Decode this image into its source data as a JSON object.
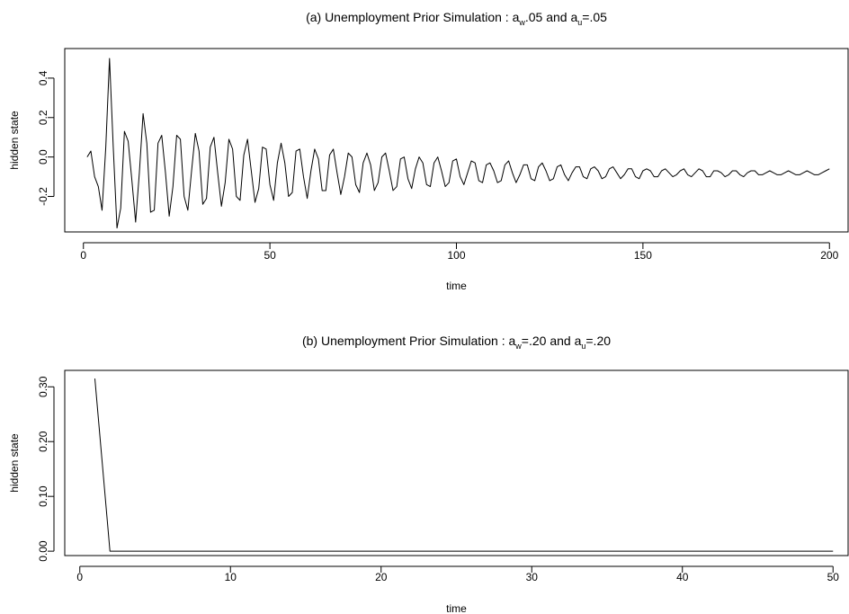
{
  "chart_data": [
    {
      "type": "line",
      "title": {
        "prefix": "(a) Unemployment Prior Simulation : a",
        "sub1": "w",
        "mid": ".05 and a",
        "sub2": "u",
        "suffix": "=.05"
      },
      "xlabel": "time",
      "ylabel": "hidden state",
      "xlim": [
        -5,
        205
      ],
      "ylim": [
        -0.38,
        0.55
      ],
      "x_ticks": [
        0,
        50,
        100,
        150,
        200
      ],
      "y_ticks": [
        -0.2,
        0.0,
        0.2,
        0.4
      ],
      "y_tick_labels": [
        "-0.2",
        "0.0",
        "0.2",
        "0.4"
      ],
      "x": [
        1,
        2,
        3,
        4,
        5,
        6,
        7,
        8,
        9,
        10,
        11,
        12,
        13,
        14,
        15,
        16,
        17,
        18,
        19,
        20,
        21,
        22,
        23,
        24,
        25,
        26,
        27,
        28,
        29,
        30,
        31,
        32,
        33,
        34,
        35,
        36,
        37,
        38,
        39,
        40,
        41,
        42,
        43,
        44,
        45,
        46,
        47,
        48,
        49,
        50,
        51,
        52,
        53,
        54,
        55,
        56,
        57,
        58,
        59,
        60,
        61,
        62,
        63,
        64,
        65,
        66,
        67,
        68,
        69,
        70,
        71,
        72,
        73,
        74,
        75,
        76,
        77,
        78,
        79,
        80,
        81,
        82,
        83,
        84,
        85,
        86,
        87,
        88,
        89,
        90,
        91,
        92,
        93,
        94,
        95,
        96,
        97,
        98,
        99,
        100,
        101,
        102,
        103,
        104,
        105,
        106,
        107,
        108,
        109,
        110,
        111,
        112,
        113,
        114,
        115,
        116,
        117,
        118,
        119,
        120,
        121,
        122,
        123,
        124,
        125,
        126,
        127,
        128,
        129,
        130,
        131,
        132,
        133,
        134,
        135,
        136,
        137,
        138,
        139,
        140,
        141,
        142,
        143,
        144,
        145,
        146,
        147,
        148,
        149,
        150,
        151,
        152,
        153,
        154,
        155,
        156,
        157,
        158,
        159,
        160,
        161,
        162,
        163,
        164,
        165,
        166,
        167,
        168,
        169,
        170,
        171,
        172,
        173,
        174,
        175,
        176,
        177,
        178,
        179,
        180,
        181,
        182,
        183,
        184,
        185,
        186,
        187,
        188,
        189,
        190,
        191,
        192,
        193,
        194,
        195,
        196,
        197,
        198,
        199,
        200
      ],
      "values": [
        0.0,
        0.03,
        -0.1,
        -0.15,
        -0.27,
        0.05,
        0.5,
        0.05,
        -0.36,
        -0.26,
        0.13,
        0.08,
        -0.12,
        -0.33,
        -0.08,
        0.22,
        0.07,
        -0.28,
        -0.27,
        0.07,
        0.11,
        -0.08,
        -0.3,
        -0.15,
        0.11,
        0.09,
        -0.2,
        -0.27,
        -0.07,
        0.12,
        0.03,
        -0.24,
        -0.21,
        0.05,
        0.1,
        -0.08,
        -0.25,
        -0.13,
        0.09,
        0.04,
        -0.2,
        -0.22,
        0.01,
        0.09,
        -0.07,
        -0.23,
        -0.16,
        0.05,
        0.04,
        -0.14,
        -0.22,
        -0.03,
        0.07,
        -0.03,
        -0.2,
        -0.18,
        0.03,
        0.04,
        -0.1,
        -0.21,
        -0.07,
        0.04,
        -0.01,
        -0.17,
        -0.17,
        0.01,
        0.04,
        -0.08,
        -0.19,
        -0.1,
        0.02,
        0.0,
        -0.14,
        -0.18,
        -0.03,
        0.02,
        -0.04,
        -0.17,
        -0.13,
        0.0,
        0.02,
        -0.07,
        -0.17,
        -0.15,
        -0.01,
        0.0,
        -0.11,
        -0.16,
        -0.06,
        0.0,
        -0.03,
        -0.14,
        -0.15,
        -0.03,
        0.0,
        -0.07,
        -0.15,
        -0.13,
        -0.02,
        -0.01,
        -0.1,
        -0.14,
        -0.08,
        -0.02,
        -0.03,
        -0.12,
        -0.13,
        -0.04,
        -0.03,
        -0.07,
        -0.13,
        -0.12,
        -0.04,
        -0.02,
        -0.08,
        -0.13,
        -0.09,
        -0.04,
        -0.04,
        -0.11,
        -0.12,
        -0.05,
        -0.03,
        -0.07,
        -0.12,
        -0.11,
        -0.05,
        -0.04,
        -0.09,
        -0.12,
        -0.08,
        -0.05,
        -0.05,
        -0.1,
        -0.11,
        -0.06,
        -0.05,
        -0.07,
        -0.11,
        -0.1,
        -0.06,
        -0.05,
        -0.08,
        -0.11,
        -0.09,
        -0.06,
        -0.06,
        -0.1,
        -0.11,
        -0.07,
        -0.06,
        -0.07,
        -0.1,
        -0.1,
        -0.07,
        -0.06,
        -0.08,
        -0.1,
        -0.09,
        -0.07,
        -0.06,
        -0.09,
        -0.1,
        -0.08,
        -0.06,
        -0.07,
        -0.1,
        -0.1,
        -0.07,
        -0.07,
        -0.08,
        -0.1,
        -0.09,
        -0.07,
        -0.07,
        -0.09,
        -0.1,
        -0.08,
        -0.07,
        -0.07,
        -0.09,
        -0.09,
        -0.08,
        -0.07,
        -0.08,
        -0.09,
        -0.09,
        -0.08,
        -0.07,
        -0.08,
        -0.09,
        -0.09,
        -0.08,
        -0.07,
        -0.08,
        -0.09,
        -0.09,
        -0.08,
        -0.07,
        -0.06
      ],
      "grid": false,
      "line_color": "#000000"
    },
    {
      "type": "line",
      "title": {
        "prefix": "(b) Unemployment Prior Simulation : a",
        "sub1": "w",
        "mid": "=.20 and a",
        "sub2": "u",
        "suffix": "=.20"
      },
      "xlabel": "time",
      "ylabel": "hidden state",
      "xlim": [
        -1,
        51
      ],
      "ylim": [
        -0.008,
        0.33
      ],
      "x_ticks": [
        0,
        10,
        20,
        30,
        40,
        50
      ],
      "y_ticks": [
        0.0,
        0.1,
        0.2,
        0.3
      ],
      "y_tick_labels": [
        "0.00",
        "0.10",
        "0.20",
        "0.30"
      ],
      "x": [
        1,
        2,
        3,
        4,
        5,
        6,
        7,
        8,
        9,
        10,
        11,
        12,
        13,
        14,
        15,
        16,
        17,
        18,
        19,
        20,
        21,
        22,
        23,
        24,
        25,
        26,
        27,
        28,
        29,
        30,
        31,
        32,
        33,
        34,
        35,
        36,
        37,
        38,
        39,
        40,
        41,
        42,
        43,
        44,
        45,
        46,
        47,
        48,
        49,
        50
      ],
      "values": [
        0.315,
        0,
        0,
        0,
        0,
        0,
        0,
        0,
        0,
        0,
        0,
        0,
        0,
        0,
        0,
        0,
        0,
        0,
        0,
        0,
        0,
        0,
        0,
        0,
        0,
        0,
        0,
        0,
        0,
        0,
        0,
        0,
        0,
        0,
        0,
        0,
        0,
        0,
        0,
        0,
        0,
        0,
        0,
        0,
        0,
        0,
        0,
        0,
        0,
        0
      ],
      "grid": false,
      "line_color": "#000000"
    }
  ]
}
